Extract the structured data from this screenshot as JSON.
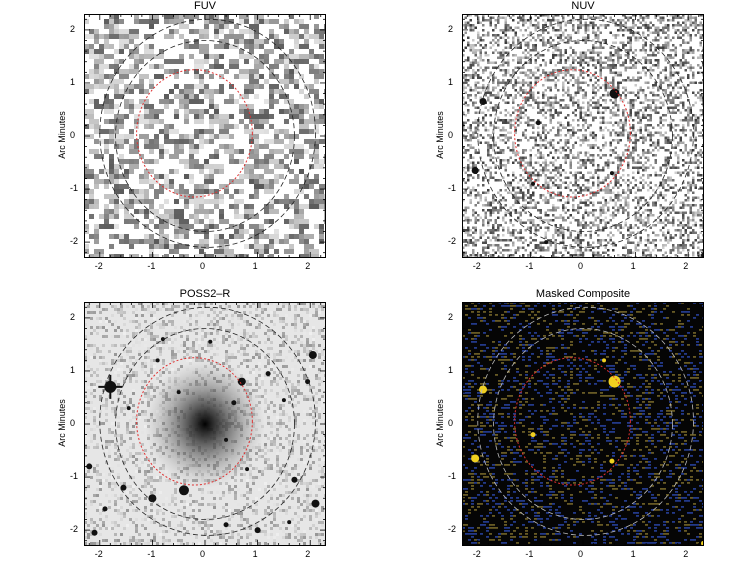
{
  "panels": [
    {
      "title": "FUV",
      "ylabel": "Arc Minutes",
      "style": "noise-coarse"
    },
    {
      "title": "NUV",
      "ylabel": "Arc Minutes",
      "style": "noise-fine"
    },
    {
      "title": "POSS2–R",
      "ylabel": "Arc Minutes",
      "style": "optical"
    },
    {
      "title": "Masked Composite",
      "ylabel": "Arc Minutes",
      "style": "composite"
    }
  ],
  "axis": {
    "x_ticks": [
      "-2",
      "-1",
      "0",
      "1",
      "2"
    ],
    "y_ticks": [
      "2",
      "1",
      "0",
      "-1",
      "-2"
    ],
    "range": [
      -2.3,
      2.3
    ]
  },
  "colors": {
    "inner_ellipse": "#e03030",
    "outer_ellipse": "#222222",
    "composite_star": "#f0d020",
    "composite_blue": "#3050c0"
  }
}
